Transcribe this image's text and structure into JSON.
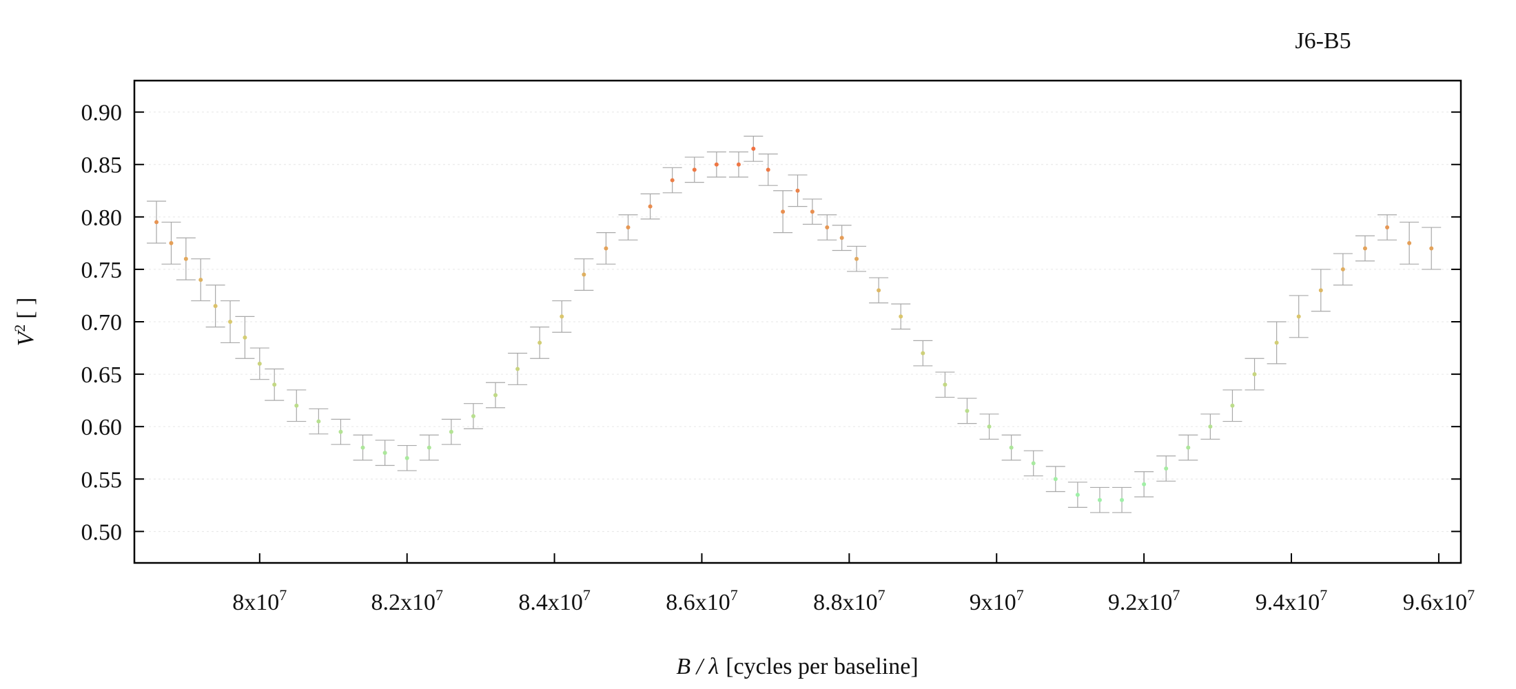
{
  "chart_data": {
    "type": "scatter",
    "title": "J6-B5",
    "xlabel_var": "B / λ",
    "xlabel_text": "[cycles per baseline]",
    "ylabel_var": "V",
    "ylabel_sup": "2",
    "ylabel_text": "[ ]",
    "xlim": [
      78300000,
      96300000
    ],
    "ylim": [
      0.47,
      0.93
    ],
    "x_ticks": [
      {
        "value": 80000000,
        "mantissa": "8x10",
        "exp": "7"
      },
      {
        "value": 82000000,
        "mantissa": "8.2x10",
        "exp": "7"
      },
      {
        "value": 84000000,
        "mantissa": "8.4x10",
        "exp": "7"
      },
      {
        "value": 86000000,
        "mantissa": "8.6x10",
        "exp": "7"
      },
      {
        "value": 88000000,
        "mantissa": "8.8x10",
        "exp": "7"
      },
      {
        "value": 90000000,
        "mantissa": "9x10",
        "exp": "7"
      },
      {
        "value": 92000000,
        "mantissa": "9.2x10",
        "exp": "7"
      },
      {
        "value": 94000000,
        "mantissa": "9.4x10",
        "exp": "7"
      },
      {
        "value": 96000000,
        "mantissa": "9.6x10",
        "exp": "7"
      }
    ],
    "y_ticks": [
      {
        "value": 0.5,
        "label": "0.50"
      },
      {
        "value": 0.55,
        "label": "0.55"
      },
      {
        "value": 0.6,
        "label": "0.60"
      },
      {
        "value": 0.65,
        "label": "0.65"
      },
      {
        "value": 0.7,
        "label": "0.70"
      },
      {
        "value": 0.75,
        "label": "0.75"
      },
      {
        "value": 0.8,
        "label": "0.80"
      },
      {
        "value": 0.85,
        "label": "0.85"
      },
      {
        "value": 0.9,
        "label": "0.90"
      }
    ],
    "grid": "horizontal dotted",
    "point_colors": {
      "low": "#9ff0a8",
      "mid": "#d9c96e",
      "high": "#f07040"
    },
    "errorbar_color": "#a8a8a8",
    "series": [
      {
        "x": [
          78600000,
          78800000,
          79000000,
          79200000,
          79400000,
          79600000,
          79800000,
          80000000,
          80200000,
          80500000,
          80800000,
          81100000,
          81400000,
          81700000,
          82000000,
          82300000,
          82600000,
          82900000,
          83200000,
          83500000,
          83800000,
          84100000,
          84400000,
          84700000,
          85000000,
          85300000,
          85600000,
          85900000,
          86200000,
          86500000,
          86700000,
          86900000,
          87100000,
          87300000,
          87500000,
          87700000,
          87900000,
          88100000,
          88400000,
          88700000,
          89000000,
          89300000,
          89600000,
          89900000,
          90200000,
          90500000,
          90800000,
          91100000,
          91400000,
          91700000,
          92000000,
          92300000,
          92600000,
          92900000,
          93200000,
          93500000,
          93800000,
          94100000,
          94400000,
          94700000,
          95000000,
          95300000,
          95600000,
          95900000
        ],
        "y": [
          0.795,
          0.775,
          0.76,
          0.74,
          0.715,
          0.7,
          0.685,
          0.66,
          0.64,
          0.62,
          0.605,
          0.595,
          0.58,
          0.575,
          0.57,
          0.58,
          0.595,
          0.61,
          0.63,
          0.655,
          0.68,
          0.705,
          0.745,
          0.77,
          0.79,
          0.81,
          0.835,
          0.845,
          0.85,
          0.85,
          0.865,
          0.845,
          0.805,
          0.825,
          0.805,
          0.79,
          0.78,
          0.76,
          0.73,
          0.705,
          0.67,
          0.64,
          0.615,
          0.6,
          0.58,
          0.565,
          0.55,
          0.535,
          0.53,
          0.53,
          0.545,
          0.56,
          0.58,
          0.6,
          0.62,
          0.65,
          0.68,
          0.705,
          0.73,
          0.75,
          0.77,
          0.79,
          0.775,
          0.77
        ],
        "y_err": [
          0.02,
          0.02,
          0.02,
          0.02,
          0.02,
          0.02,
          0.02,
          0.015,
          0.015,
          0.015,
          0.012,
          0.012,
          0.012,
          0.012,
          0.012,
          0.012,
          0.012,
          0.012,
          0.012,
          0.015,
          0.015,
          0.015,
          0.015,
          0.015,
          0.012,
          0.012,
          0.012,
          0.012,
          0.012,
          0.012,
          0.012,
          0.015,
          0.02,
          0.015,
          0.012,
          0.012,
          0.012,
          0.012,
          0.012,
          0.012,
          0.012,
          0.012,
          0.012,
          0.012,
          0.012,
          0.012,
          0.012,
          0.012,
          0.012,
          0.012,
          0.012,
          0.012,
          0.012,
          0.012,
          0.015,
          0.015,
          0.02,
          0.02,
          0.02,
          0.015,
          0.012,
          0.012,
          0.02,
          0.02
        ]
      }
    ]
  }
}
